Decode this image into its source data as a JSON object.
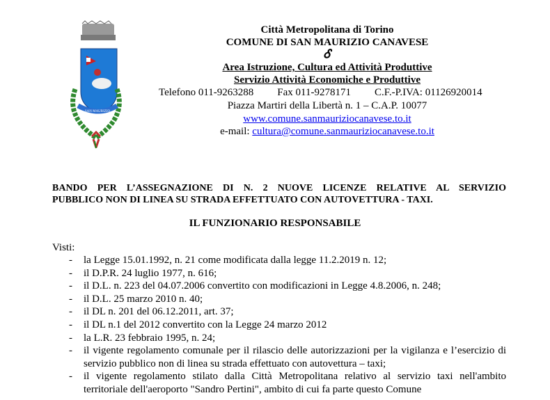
{
  "header": {
    "line1": "Città Metropolitana di Torino",
    "line2": "COMUNE DI SAN MAURIZIO CANAVESE",
    "symbol": "Ꮄ",
    "area": "Area Istruzione, Cultura ed Attività Produttive",
    "servizio": "Servizio Attività Economiche e Produttive",
    "telefono": "Telefono 011-9263288",
    "fax": "Fax 011-9278171",
    "cf": "C.F.-P.IVA: 01126920014",
    "address": "Piazza Martiri della Libertà n. 1 – C.A.P. 10077",
    "website": "www.comune.sanmauriziocanavese.to.it",
    "email_label": "e-mail: ",
    "email": "cultura@comune.sanmauriziocanavese.to.it",
    "logo_ribbon": "SAN MAURIZIO"
  },
  "document": {
    "heading_line1": "BANDO PER L’ASSEGNAZIONE DI N. 2 NUOVE LICENZE RELATIVE AL SERVIZIO",
    "heading_line2": "PUBBLICO NON DI LINEA SU STRADA EFFETTUATO CON AUTOVETTURA - TAXI.",
    "title": "IL FUNZIONARIO RESPONSABILE",
    "visti_label": "Visti:",
    "items": [
      "la Legge 15.01.1992, n. 21 come modificata dalla legge 11.2.2019 n. 12;",
      "il D.P.R. 24 luglio 1977, n. 616;",
      "il D.L. n. 223 del 04.07.2006 convertito con modificazioni in Legge 4.8.2006, n. 248;",
      "il D.L. 25 marzo 2010 n. 40;",
      "il DL n. 201 del 06.12.2011, art. 37;",
      "il DL n.1 del 2012 convertito con la Legge 24 marzo 2012",
      "la L.R. 23 febbraio 1995, n. 24;",
      "il vigente regolamento comunale per il rilascio delle autorizzazioni per la vigilanza e l’esercizio di servizio pubblico non di linea su strada effettuato con autovettura – taxi;",
      "il vigente regolamento stilato dalla Città Metropolitana relativo al servizio taxi nell'ambito territoriale dell'aeroporto \"Sandro Pertini\", ambito di cui fa parte questo Comune"
    ],
    "bullet": "-"
  }
}
